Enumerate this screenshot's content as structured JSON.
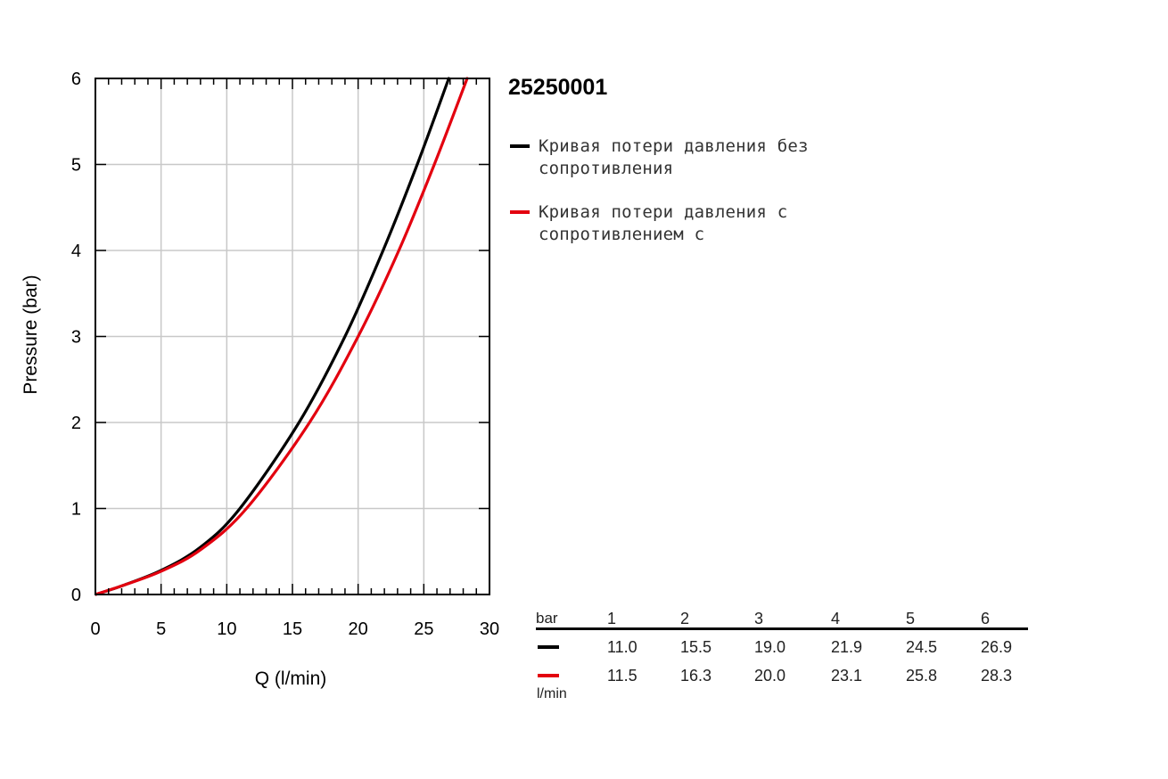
{
  "chart_data": {
    "type": "line",
    "title": "25250001",
    "xlabel": "Q (l/min)",
    "ylabel": "Pressure (bar)",
    "xlim": [
      0,
      30
    ],
    "ylim": [
      0,
      6
    ],
    "xticks": [
      0,
      5,
      10,
      15,
      20,
      25,
      30
    ],
    "yticks": [
      0,
      1,
      2,
      3,
      4,
      5,
      6
    ],
    "grid": true,
    "legend_position": "right",
    "series": [
      {
        "name": "Кривая потери давления без сопротивления",
        "color": "#000000",
        "x": [
          0,
          2,
          5,
          8,
          11.0,
          15.5,
          19.0,
          21.9,
          24.5,
          26.9
        ],
        "y": [
          0,
          0.1,
          0.28,
          0.55,
          1,
          2,
          3,
          4,
          5,
          6
        ]
      },
      {
        "name": "Кривая потери давления с сопротивлением с",
        "color": "#e3000f",
        "x": [
          0,
          2,
          5,
          8,
          11.5,
          16.3,
          20.0,
          23.1,
          25.8,
          28.3
        ],
        "y": [
          0,
          0.1,
          0.27,
          0.52,
          1,
          2,
          3,
          4,
          5,
          6
        ]
      }
    ]
  },
  "table": {
    "header_unit": "bar",
    "columns": [
      "1",
      "2",
      "3",
      "4",
      "5",
      "6"
    ],
    "rows": [
      {
        "color": "#000000",
        "values": [
          "11.0",
          "15.5",
          "19.0",
          "21.9",
          "24.5",
          "26.9"
        ]
      },
      {
        "color": "#e3000f",
        "values": [
          "11.5",
          "16.3",
          "20.0",
          "23.1",
          "25.8",
          "28.3"
        ]
      }
    ],
    "row_unit": "l/min"
  }
}
